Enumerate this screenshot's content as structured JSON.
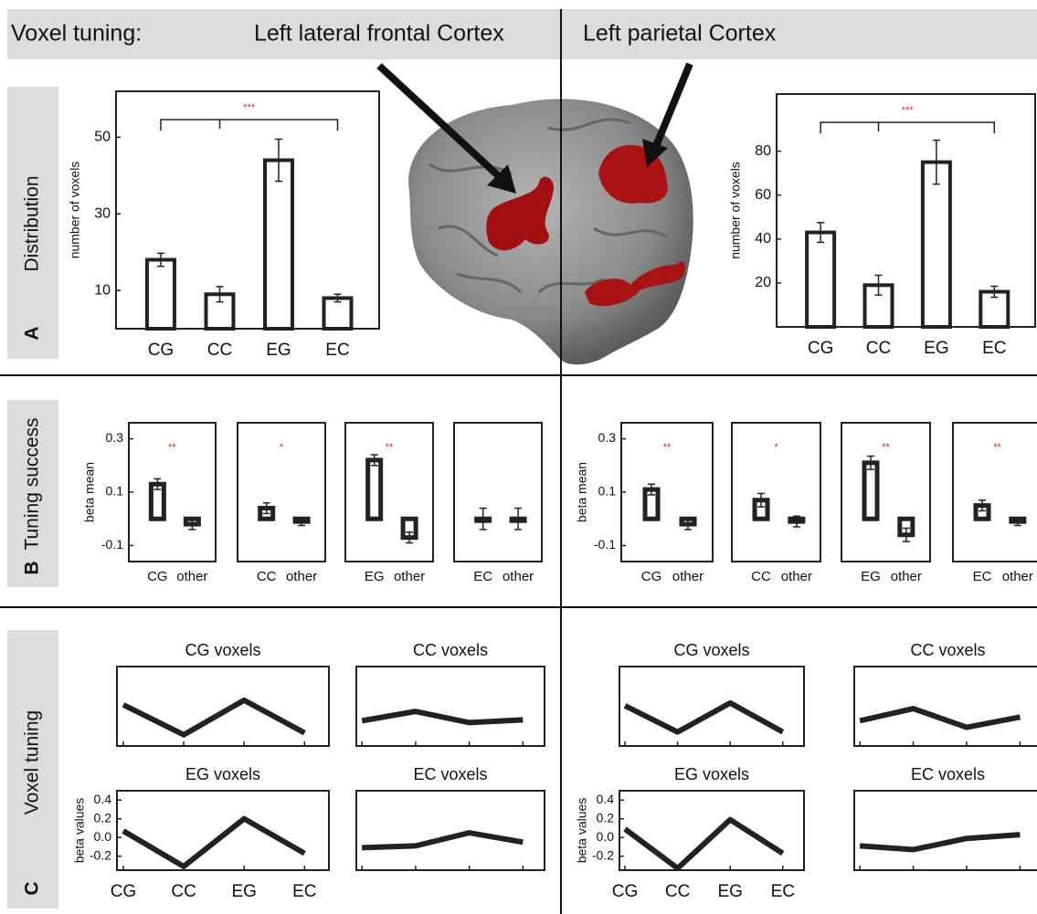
{
  "header": {
    "label": "Voxel tuning:",
    "regions": [
      "Left lateral frontal Cortex",
      "Left parietal Cortex"
    ]
  },
  "rows": [
    {
      "label": "Distribution",
      "letter": "A"
    },
    {
      "label": "Tuning success",
      "letter": "B"
    },
    {
      "label": "Voxel tuning",
      "letter": "C"
    }
  ],
  "chart_data": [
    {
      "type": "bar",
      "ylabel": "number of voxels",
      "categories": [
        "CG",
        "CC",
        "EG",
        "EC"
      ],
      "values": [
        18,
        9,
        44,
        8
      ],
      "errors": [
        1.7,
        2,
        5.5,
        1
      ],
      "ylim": [
        0,
        62
      ],
      "yticks": [
        10,
        30,
        50
      ],
      "annotation": "***"
    },
    {
      "type": "bar",
      "ylabel": "number of voxels",
      "categories": [
        "CG",
        "CC",
        "EG",
        "EC"
      ],
      "values": [
        43,
        19,
        75,
        16
      ],
      "errors": [
        4.5,
        4.5,
        10,
        2.5
      ],
      "ylim": [
        0,
        106
      ],
      "yticks": [
        20,
        40,
        60,
        80
      ],
      "annotation": "***"
    },
    {
      "type": "bar",
      "ylabel": "beta mean",
      "categories": [
        "CG",
        "other"
      ],
      "values": [
        0.13,
        -0.02
      ],
      "errors": [
        0.02,
        0.02
      ],
      "ylim": [
        -0.16,
        0.36
      ],
      "yticks": [
        -0.1,
        0.1,
        0.3
      ],
      "annotation": "**"
    },
    {
      "type": "bar",
      "categories": [
        "CC",
        "other"
      ],
      "values": [
        0.04,
        -0.01
      ],
      "errors": [
        0.02,
        0.015
      ],
      "ylim": [
        -0.16,
        0.36
      ],
      "annotation": "*"
    },
    {
      "type": "bar",
      "categories": [
        "EG",
        "other"
      ],
      "values": [
        0.22,
        -0.07
      ],
      "errors": [
        0.02,
        0.02
      ],
      "ylim": [
        -0.16,
        0.36
      ],
      "annotation": "**"
    },
    {
      "type": "bar",
      "categories": [
        "EC",
        "other"
      ],
      "values": [
        0,
        0
      ],
      "errors": [
        0.04,
        0.04
      ],
      "ylim": [
        -0.16,
        0.36
      ]
    },
    {
      "type": "bar",
      "ylabel": "beta mean",
      "categories": [
        "CG",
        "other"
      ],
      "values": [
        0.11,
        -0.02
      ],
      "errors": [
        0.02,
        0.02
      ],
      "ylim": [
        -0.16,
        0.36
      ],
      "yticks": [
        -0.1,
        0.1,
        0.3
      ],
      "annotation": "**"
    },
    {
      "type": "bar",
      "categories": [
        "CC",
        "other"
      ],
      "values": [
        0.07,
        -0.01
      ],
      "errors": [
        0.025,
        0.02
      ],
      "ylim": [
        -0.16,
        0.36
      ],
      "annotation": "*"
    },
    {
      "type": "bar",
      "categories": [
        "EG",
        "other"
      ],
      "values": [
        0.21,
        -0.06
      ],
      "errors": [
        0.025,
        0.025
      ],
      "ylim": [
        -0.16,
        0.36
      ],
      "annotation": "**"
    },
    {
      "type": "bar",
      "categories": [
        "EC",
        "other"
      ],
      "values": [
        0.05,
        -0.01
      ],
      "errors": [
        0.02,
        0.015
      ],
      "ylim": [
        -0.16,
        0.36
      ],
      "annotation": "**"
    },
    {
      "type": "line",
      "title": "CG voxels",
      "values": [
        0.09,
        -0.23,
        0.14,
        -0.21
      ],
      "ylim": [
        -0.35,
        0.5
      ]
    },
    {
      "type": "line",
      "title": "CC voxels",
      "values": [
        -0.08,
        0.02,
        -0.1,
        -0.07
      ],
      "ylim": [
        -0.35,
        0.5
      ]
    },
    {
      "type": "line",
      "title": "EG voxels",
      "ylabel": "beta values",
      "categories": [
        "CG",
        "CC",
        "EG",
        "EC"
      ],
      "values": [
        0.07,
        -0.31,
        0.2,
        -0.17
      ],
      "ylim": [
        -0.35,
        0.5
      ],
      "yticks": [
        -0.2,
        {
          "value": 0,
          "label": "0.0"
        },
        0.2,
        0.4
      ]
    },
    {
      "type": "line",
      "title": "EC voxels",
      "values": [
        -0.11,
        -0.09,
        0.05,
        -0.05
      ],
      "ylim": [
        -0.35,
        0.5
      ]
    },
    {
      "type": "line",
      "title": "CG voxels",
      "values": [
        0.08,
        -0.2,
        0.11,
        -0.2
      ],
      "ylim": [
        -0.35,
        0.5
      ]
    },
    {
      "type": "line",
      "title": "CC voxels",
      "values": [
        -0.08,
        0.05,
        -0.15,
        -0.04
      ],
      "ylim": [
        -0.35,
        0.5
      ]
    },
    {
      "type": "line",
      "title": "EG voxels",
      "ylabel": "beta values",
      "categories": [
        "CG",
        "CC",
        "EG",
        "EC"
      ],
      "values": [
        0.09,
        -0.33,
        0.19,
        -0.17
      ],
      "ylim": [
        -0.35,
        0.5
      ],
      "yticks": [
        -0.2,
        {
          "value": 0,
          "label": "0.0"
        },
        0.2,
        0.4
      ]
    },
    {
      "type": "line",
      "title": "EC voxels",
      "values": [
        -0.09,
        -0.13,
        -0.01,
        0.03
      ],
      "ylim": [
        -0.35,
        0.5
      ]
    }
  ]
}
